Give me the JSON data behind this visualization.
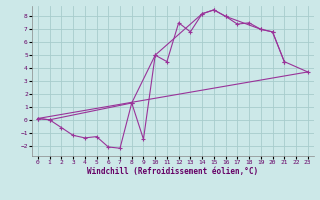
{
  "xlabel": "Windchill (Refroidissement éolien,°C)",
  "background_color": "#cce8e8",
  "grid_color": "#a8cccc",
  "line_color": "#993399",
  "xlim": [
    -0.5,
    23.5
  ],
  "ylim": [
    -2.8,
    8.8
  ],
  "xticks": [
    0,
    1,
    2,
    3,
    4,
    5,
    6,
    7,
    8,
    9,
    10,
    11,
    12,
    13,
    14,
    15,
    16,
    17,
    18,
    19,
    20,
    21,
    22,
    23
  ],
  "yticks": [
    -2,
    -1,
    0,
    1,
    2,
    3,
    4,
    5,
    6,
    7,
    8
  ],
  "line1_x": [
    0,
    1,
    2,
    3,
    4,
    5,
    6,
    7,
    8,
    9,
    10,
    11,
    12,
    13,
    14,
    15,
    16,
    17,
    18,
    19,
    20,
    21
  ],
  "line1_y": [
    0.1,
    0.0,
    -0.6,
    -1.2,
    -1.4,
    -1.3,
    -2.1,
    -2.2,
    1.3,
    -1.5,
    5.0,
    4.5,
    7.5,
    6.8,
    8.2,
    8.5,
    8.0,
    7.4,
    7.5,
    7.0,
    6.8,
    4.5
  ],
  "line2_x": [
    0,
    1,
    8,
    10,
    14,
    15,
    16,
    19,
    20,
    21,
    23
  ],
  "line2_y": [
    0.1,
    0.0,
    1.3,
    5.0,
    8.2,
    8.5,
    8.0,
    7.0,
    6.8,
    4.5,
    3.7
  ],
  "line3_x": [
    0,
    23
  ],
  "line3_y": [
    0.1,
    3.7
  ],
  "figw": 3.2,
  "figh": 2.0,
  "dpi": 100
}
